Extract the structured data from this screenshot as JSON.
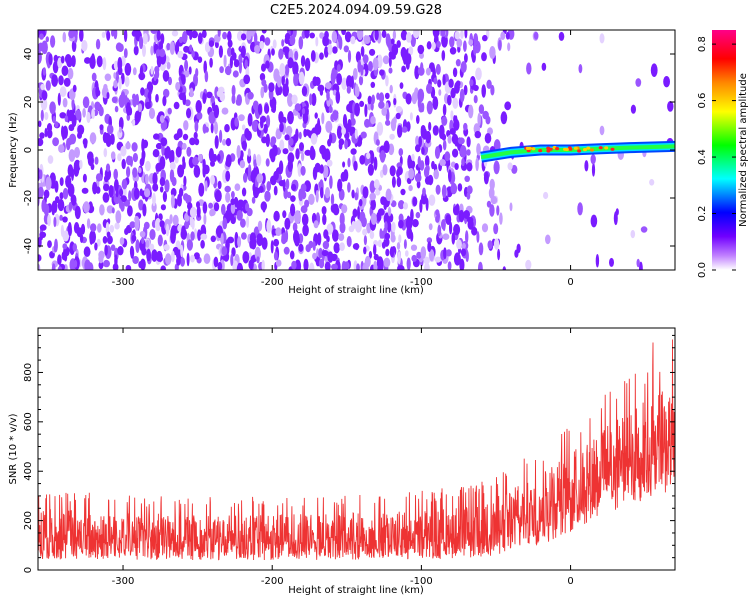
{
  "title": "C2E5.2024.094.09.59.G28",
  "chart_data": [
    {
      "type": "heatmap",
      "xlabel": "Height of straight line (km)",
      "ylabel": "Frequency (Hz)",
      "xlim": [
        -357,
        70
      ],
      "ylim": [
        -50,
        50
      ],
      "xticks": [
        -300,
        -200,
        -100,
        0
      ],
      "yticks": [
        -40,
        -20,
        0,
        20,
        40
      ],
      "colorbar": {
        "label": "Normalized spectral amplitude",
        "range": [
          0,
          0.85
        ],
        "ticks": [
          0.0,
          0.2,
          0.4,
          0.6,
          0.8
        ],
        "colormap": [
          "#ffffff",
          "#7000ff",
          "#0000ff",
          "#00ffff",
          "#00ff00",
          "#ffff00",
          "#ff8800",
          "#ff0000",
          "#ff0088"
        ]
      },
      "noise_region": {
        "x_range": [
          -357,
          -60
        ],
        "freq_range": [
          -50,
          50
        ],
        "amplitude_approx": 0.05
      },
      "signal_ridge": {
        "x_start": -60,
        "x_end": 70,
        "points": [
          [
            -60,
            -3
          ],
          [
            -40,
            -1
          ],
          [
            -20,
            0
          ],
          [
            0,
            0
          ],
          [
            20,
            0.5
          ],
          [
            40,
            1
          ],
          [
            70,
            1.5
          ]
        ],
        "peak_amplitude_approx": 0.85
      }
    },
    {
      "type": "line",
      "xlabel": "Height of straight line (km)",
      "ylabel": "SNR (10 * v/v)",
      "xlim": [
        -357,
        70
      ],
      "ylim": [
        0,
        980
      ],
      "xticks": [
        -300,
        -200,
        -100,
        0
      ],
      "yticks": [
        0,
        200,
        400,
        600,
        800
      ],
      "color": "#ee3333",
      "envelope": [
        {
          "x": -357,
          "low": 40,
          "mid": 130,
          "high": 280
        },
        {
          "x": -300,
          "low": 40,
          "mid": 125,
          "high": 260
        },
        {
          "x": -250,
          "low": 40,
          "mid": 120,
          "high": 250
        },
        {
          "x": -200,
          "low": 40,
          "mid": 118,
          "high": 250
        },
        {
          "x": -150,
          "low": 40,
          "mid": 120,
          "high": 260
        },
        {
          "x": -100,
          "low": 45,
          "mid": 125,
          "high": 270
        },
        {
          "x": -60,
          "low": 50,
          "mid": 140,
          "high": 300
        },
        {
          "x": -40,
          "low": 70,
          "mid": 190,
          "high": 360
        },
        {
          "x": -20,
          "low": 100,
          "mid": 250,
          "high": 430
        },
        {
          "x": 0,
          "low": 150,
          "mid": 320,
          "high": 520
        },
        {
          "x": 20,
          "low": 220,
          "mid": 400,
          "high": 620
        },
        {
          "x": 40,
          "low": 260,
          "mid": 460,
          "high": 700
        },
        {
          "x": 60,
          "low": 300,
          "mid": 500,
          "high": 780
        },
        {
          "x": 70,
          "low": 330,
          "mid": 520,
          "high": 830
        }
      ],
      "max_approx": 970
    }
  ]
}
